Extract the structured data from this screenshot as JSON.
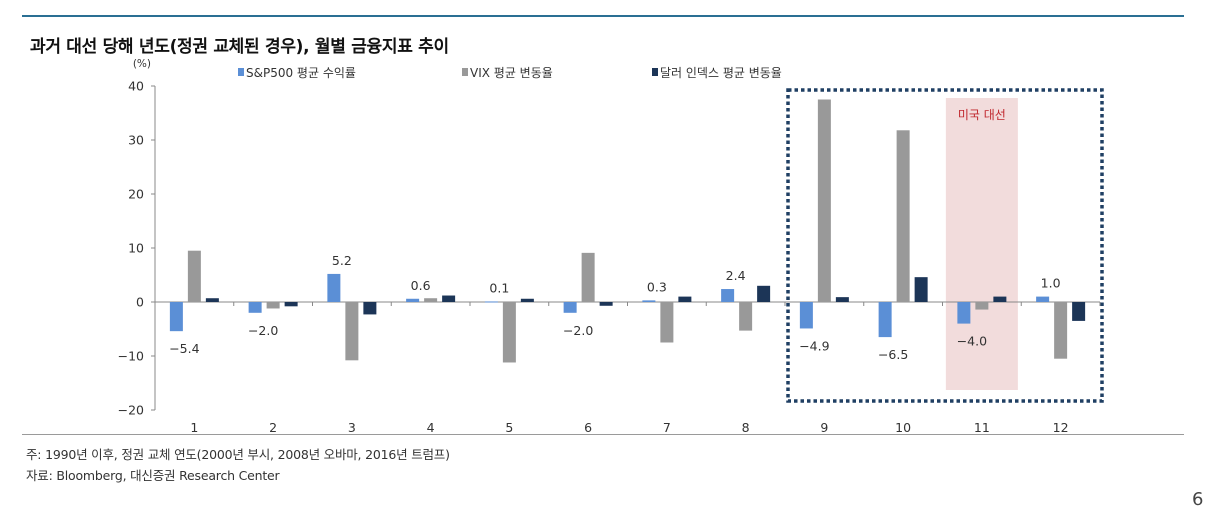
{
  "title": "과거 대선 당해 년도(정권 교체된 경우), 월별 금융지표 추이",
  "notes": {
    "note": "주: 1990년 이후, 정권 교체 연도(2000년 부시, 2008년 오바마, 2016년 트럼프)",
    "source": "자료: Bloomberg, 대신증권 Research Center"
  },
  "page_number": "6",
  "colors": {
    "sp500": "#5b8fd6",
    "vix": "#999999",
    "dollar": "#1c3557",
    "highlight_fill": "#f2dcdc",
    "highlight_label": "#c0272d",
    "dashed_box": "#1f3f63",
    "rule": "#2a6f93"
  },
  "chart_data": {
    "type": "bar",
    "unit_label": "(%)",
    "categories": [
      "1",
      "2",
      "3",
      "4",
      "5",
      "6",
      "7",
      "8",
      "9",
      "10",
      "11",
      "12"
    ],
    "ylim": [
      -20,
      40
    ],
    "yticks": [
      40,
      30,
      20,
      10,
      0,
      -10,
      -20
    ],
    "ytick_labels": [
      "40",
      "30",
      "20",
      "10",
      "0",
      "−10",
      "−20"
    ],
    "series": [
      {
        "name": "S&P500 평균 수익률",
        "values": [
          -5.4,
          -2.0,
          5.2,
          0.6,
          0.1,
          -2.0,
          0.3,
          2.4,
          -4.9,
          -6.5,
          -4.0,
          1.0
        ]
      },
      {
        "name": "VIX 평균 변동율",
        "values": [
          9.5,
          -1.2,
          -10.8,
          0.7,
          -11.2,
          9.1,
          -7.5,
          -5.3,
          37.5,
          31.8,
          -1.4,
          -10.5
        ]
      },
      {
        "name": "달러 인덱스 평균 변동율",
        "values": [
          0.7,
          -0.8,
          -2.3,
          1.2,
          0.6,
          -0.7,
          1.0,
          3.0,
          0.9,
          4.6,
          1.0,
          -3.5
        ]
      }
    ],
    "data_labels": [
      "−5.4",
      "−2.0",
      "5.2",
      "0.6",
      "0.1",
      "−2.0",
      "0.3",
      "2.4",
      "−4.9",
      "−6.5",
      "−4.0",
      "1.0"
    ],
    "annotation": "미국 대선",
    "highlight_category": "11",
    "boxed_categories": [
      "9",
      "10",
      "11",
      "12"
    ],
    "grid": false,
    "legend_position": "top"
  }
}
